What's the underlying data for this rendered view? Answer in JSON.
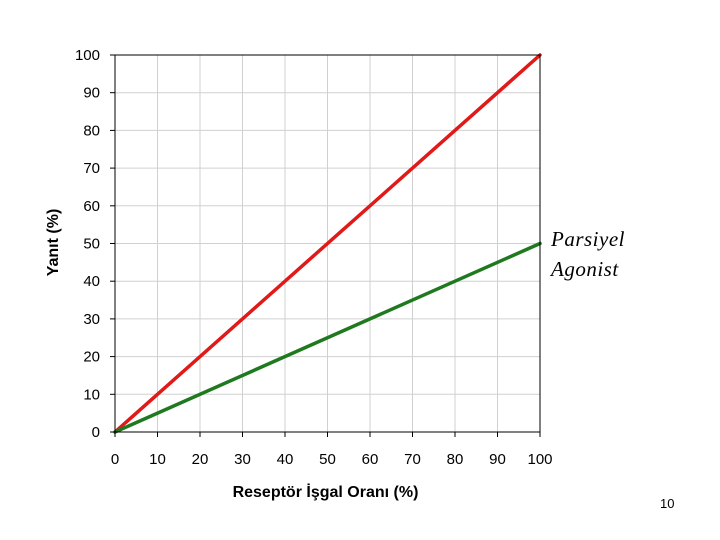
{
  "chart_data": {
    "type": "line",
    "xlabel": "Reseptör İşgal Oranı (%)",
    "ylabel": "Yanıt (%)",
    "xlim": [
      0,
      100
    ],
    "ylim": [
      0,
      100
    ],
    "xticks": [
      0,
      10,
      20,
      30,
      40,
      50,
      60,
      70,
      80,
      90,
      100
    ],
    "yticks": [
      0,
      10,
      20,
      30,
      40,
      50,
      60,
      70,
      80,
      90,
      100
    ],
    "grid": true,
    "series": [
      {
        "color": "#e01919",
        "x": [
          0,
          100
        ],
        "y": [
          0,
          100
        ]
      },
      {
        "color": "#1f7a1f",
        "x": [
          0,
          100
        ],
        "y": [
          0,
          50
        ]
      }
    ],
    "annotation": {
      "line1": "Parsiyel",
      "line2": "Agonist"
    }
  },
  "page_number": "10"
}
